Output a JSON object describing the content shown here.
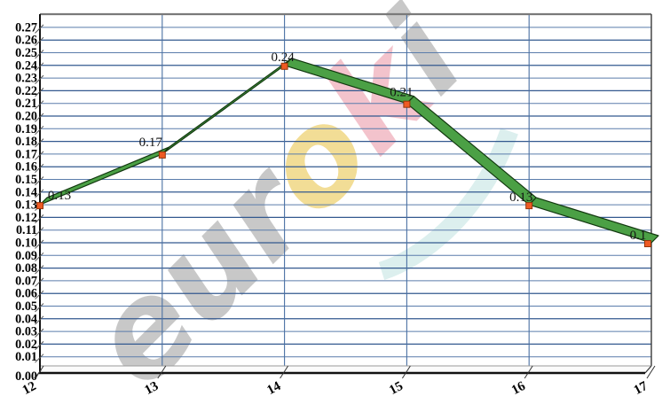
{
  "chart_data": {
    "type": "line",
    "title": "",
    "xlabel": "",
    "ylabel": "",
    "x": [
      12,
      13,
      14,
      15,
      16,
      17
    ],
    "x_tick_labels": [
      "12",
      "13",
      "14",
      "15",
      "16",
      "17"
    ],
    "values": [
      0.13,
      0.17,
      0.24,
      0.21,
      0.13,
      0.1
    ],
    "point_labels": [
      "0.13",
      "0.17",
      "0.24",
      "0.21",
      "0.13",
      "0.1"
    ],
    "ylim": [
      0,
      0.27
    ],
    "y_tick_step": 0.01,
    "y_tick_labels": [
      "0.00",
      "0.01",
      "0.02",
      "0.03",
      "0.04",
      "0.05",
      "0.06",
      "0.07",
      "0.08",
      "0.09",
      "0.10",
      "0.11",
      "0.12",
      "0.13",
      "0.14",
      "0.15",
      "0.16",
      "0.17",
      "0.18",
      "0.19",
      "0.20",
      "0.21",
      "0.22",
      "0.23",
      "0.24",
      "0.25",
      "0.26",
      "0.27"
    ],
    "grid": true,
    "legend": false,
    "style_3d": true,
    "colors": {
      "ribbon": "#4ba045",
      "ribbon_edge": "#12380f",
      "marker": "#ee5a24",
      "marker_edge": "#943509",
      "grid_even": "#33598f",
      "grid_odd": "#5a7cab",
      "grid_vertical": "#4a70a3",
      "axis": "#111111",
      "point_label_color": "#151515"
    }
  },
  "watermark": {
    "word": "euroki",
    "letters": [
      {
        "char": "e",
        "color": "#c8c8c8"
      },
      {
        "char": "u",
        "color": "#c8c8c8"
      },
      {
        "char": "r",
        "color": "#c8c8c8"
      },
      {
        "char": "o",
        "color": "#f2dd96"
      },
      {
        "char": "k",
        "color": "#f3c3cc"
      },
      {
        "char": "i",
        "color": "#c8c8c8"
      }
    ],
    "swoosh_color": "#dcefee"
  }
}
